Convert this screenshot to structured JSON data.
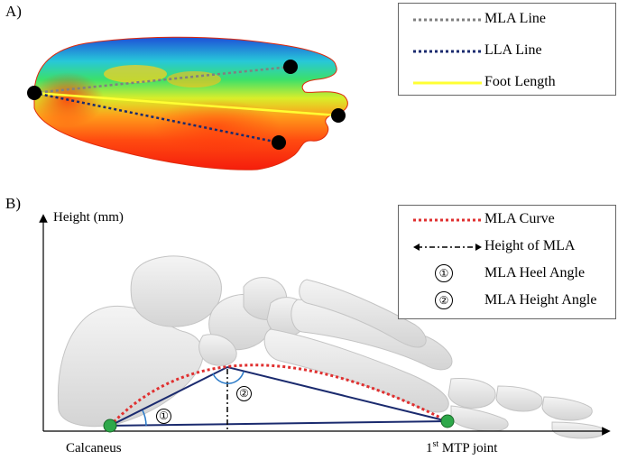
{
  "panel_a": {
    "label": "A)",
    "legend": [
      {
        "label": "MLA Line",
        "color": "#808080",
        "style": "dotted"
      },
      {
        "label": "LLA Line",
        "color": "#1a2a6e",
        "style": "dotted"
      },
      {
        "label": "Foot Length",
        "color": "#ffff33",
        "style": "solid"
      }
    ]
  },
  "panel_b": {
    "label": "B)",
    "y_axis_label": "Height (mm)",
    "left_point_label": "Calcaneus",
    "right_point_label_main": "1",
    "right_point_label_sup": "st",
    "right_point_label_rest": " MTP joint",
    "angle_1": "①",
    "angle_2": "②",
    "legend": [
      {
        "label": "MLA Curve",
        "color": "#e03030",
        "style": "dotted"
      },
      {
        "label": "Height of MLA",
        "color": "#000000",
        "style": "dash-dot-arrow"
      },
      {
        "label": "MLA Heel Angle",
        "symbol": "①"
      },
      {
        "label": "MLA Height Angle",
        "symbol": "②"
      }
    ],
    "point_color": "#2ea84a"
  }
}
